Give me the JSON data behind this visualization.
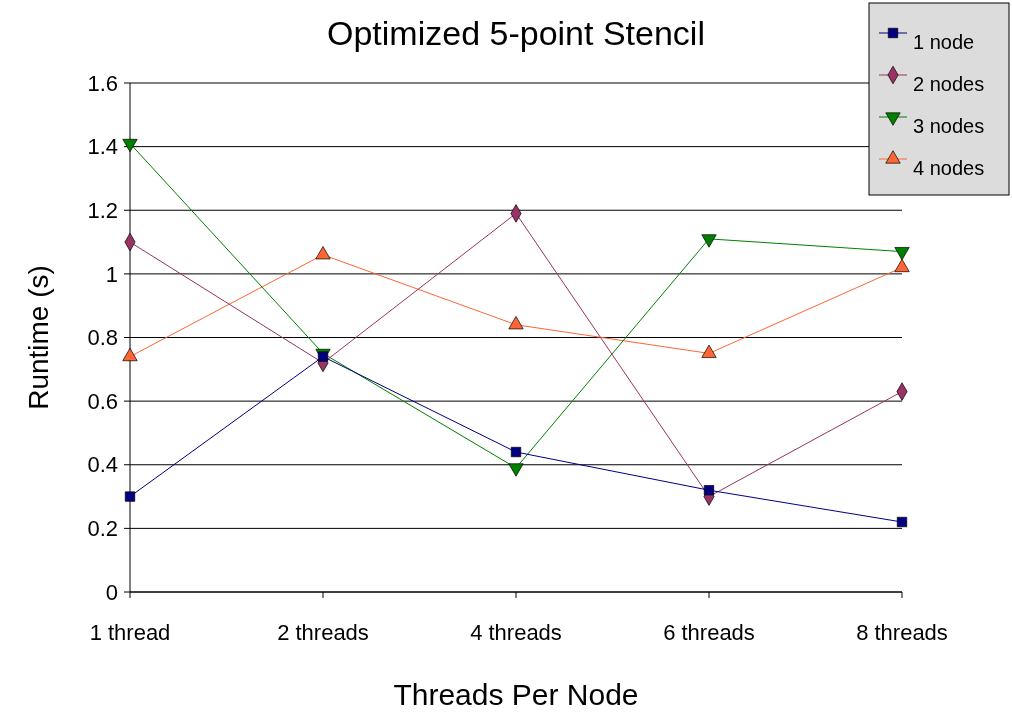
{
  "chart_data": {
    "type": "line",
    "title": "Optimized 5-point Stencil",
    "xlabel": "Threads Per Node",
    "ylabel": "Runtime (s)",
    "categories": [
      "1 thread",
      "2 threads",
      "4 threads",
      "6 threads",
      "8 threads"
    ],
    "series": [
      {
        "name": "1 node",
        "color": "#000080",
        "marker": "square",
        "values": [
          0.3,
          0.74,
          0.44,
          0.32,
          0.22
        ]
      },
      {
        "name": "2 nodes",
        "color": "#993366",
        "marker": "diamond",
        "values": [
          1.1,
          0.72,
          1.19,
          0.3,
          0.63
        ]
      },
      {
        "name": "3 nodes",
        "color": "#008000",
        "marker": "triangle-down",
        "values": [
          1.41,
          0.75,
          0.39,
          1.11,
          1.07
        ]
      },
      {
        "name": "4 nodes",
        "color": "#ff6633",
        "marker": "triangle",
        "values": [
          0.74,
          1.06,
          0.84,
          0.75,
          1.02
        ]
      }
    ],
    "ylim": [
      0,
      1.6
    ],
    "yticks": [
      0,
      0.2,
      0.4,
      0.6,
      0.8,
      1,
      1.2,
      1.4,
      1.6
    ],
    "grid": "y",
    "legend": "top right"
  }
}
